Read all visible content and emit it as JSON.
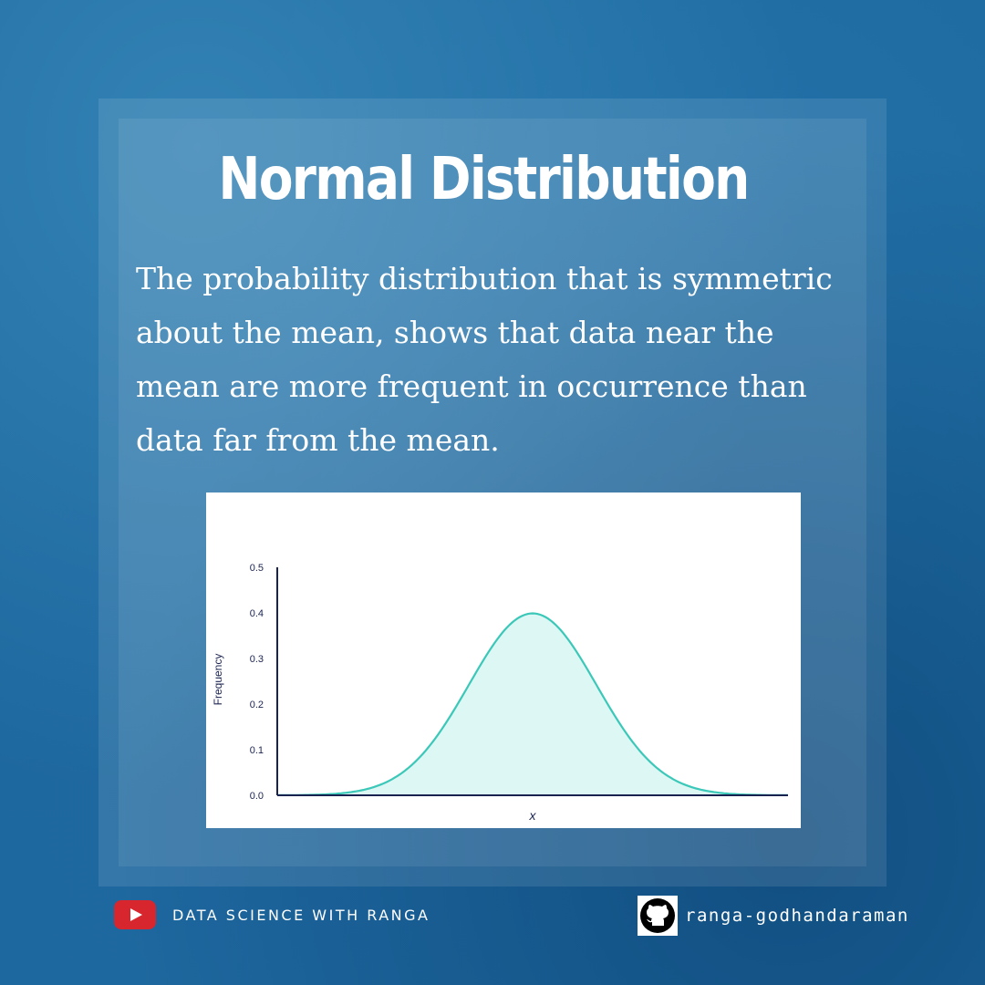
{
  "title": "Normal Distribution",
  "description": "The probability distribution that is symmetric about the mean, shows that data near the mean are more frequent in occurrence than data far from the mean.",
  "chart_data": {
    "type": "area",
    "xlabel": "x",
    "ylabel": "Frequency",
    "ylim": [
      0,
      0.5
    ],
    "yticks": [
      "0.0",
      "0.1",
      "0.2",
      "0.3",
      "0.4",
      "0.5"
    ],
    "x": [
      -4,
      -3.5,
      -3,
      -2.5,
      -2,
      -1.5,
      -1,
      -0.5,
      0,
      0.5,
      1,
      1.5,
      2,
      2.5,
      3,
      3.5,
      4
    ],
    "values": [
      0.0001,
      0.0009,
      0.0044,
      0.0175,
      0.054,
      0.1295,
      0.242,
      0.3521,
      0.399,
      0.3521,
      0.242,
      0.1295,
      0.054,
      0.0175,
      0.0044,
      0.0009,
      0.0001
    ],
    "grid": false,
    "colors": {
      "line": "#3cc8b9",
      "fill": "#ddf7f4",
      "axis": "#1a2350"
    }
  },
  "footer": {
    "channel": "DATA SCIENCE WITH RANGA",
    "channel_icon": "youtube-icon",
    "github_user": "ranga-godhandaraman",
    "github_icon": "github-icon"
  }
}
